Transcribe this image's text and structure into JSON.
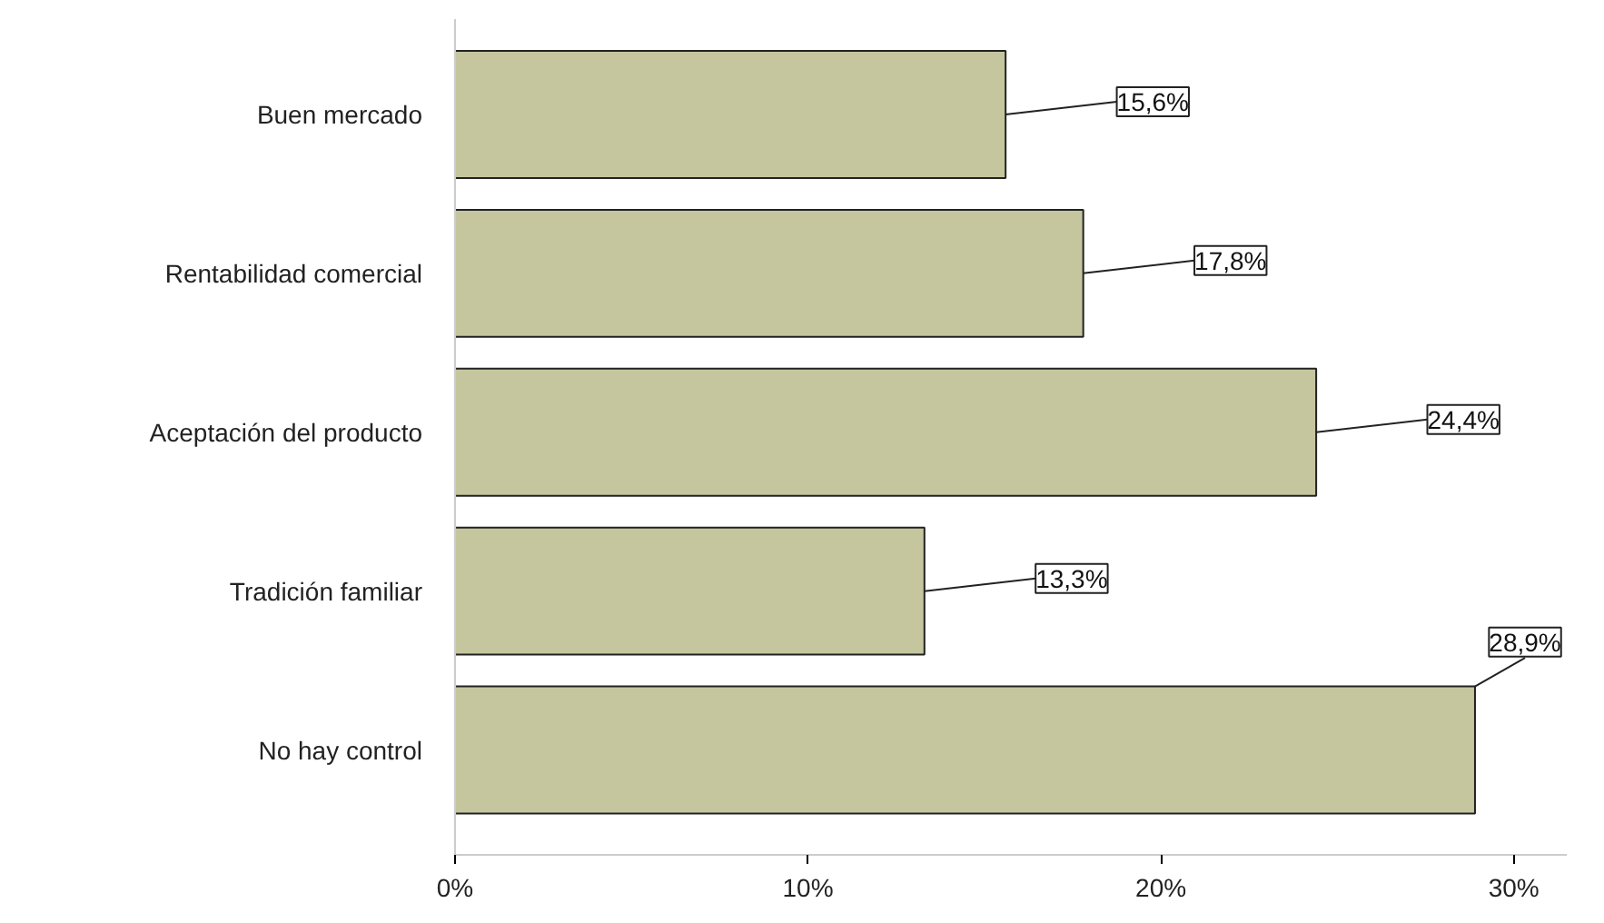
{
  "chart_data": {
    "type": "bar",
    "orientation": "horizontal",
    "categories": [
      "Buen mercado",
      "Rentabilidad comercial",
      "Aceptación del producto",
      "Tradición familiar",
      "No hay control"
    ],
    "values": [
      15.6,
      17.8,
      24.4,
      13.3,
      28.9
    ],
    "value_labels": [
      "15,6%",
      "17,8%",
      "24,4%",
      "13,3%",
      "28,9%"
    ],
    "color": "#c5c69e",
    "xlim": [
      0,
      31.5
    ],
    "xticks": [
      {
        "value": 0,
        "label": "0%"
      },
      {
        "value": 10,
        "label": "10%"
      },
      {
        "value": 20,
        "label": "20%"
      },
      {
        "value": 30,
        "label": "30%"
      }
    ],
    "grid": false
  }
}
